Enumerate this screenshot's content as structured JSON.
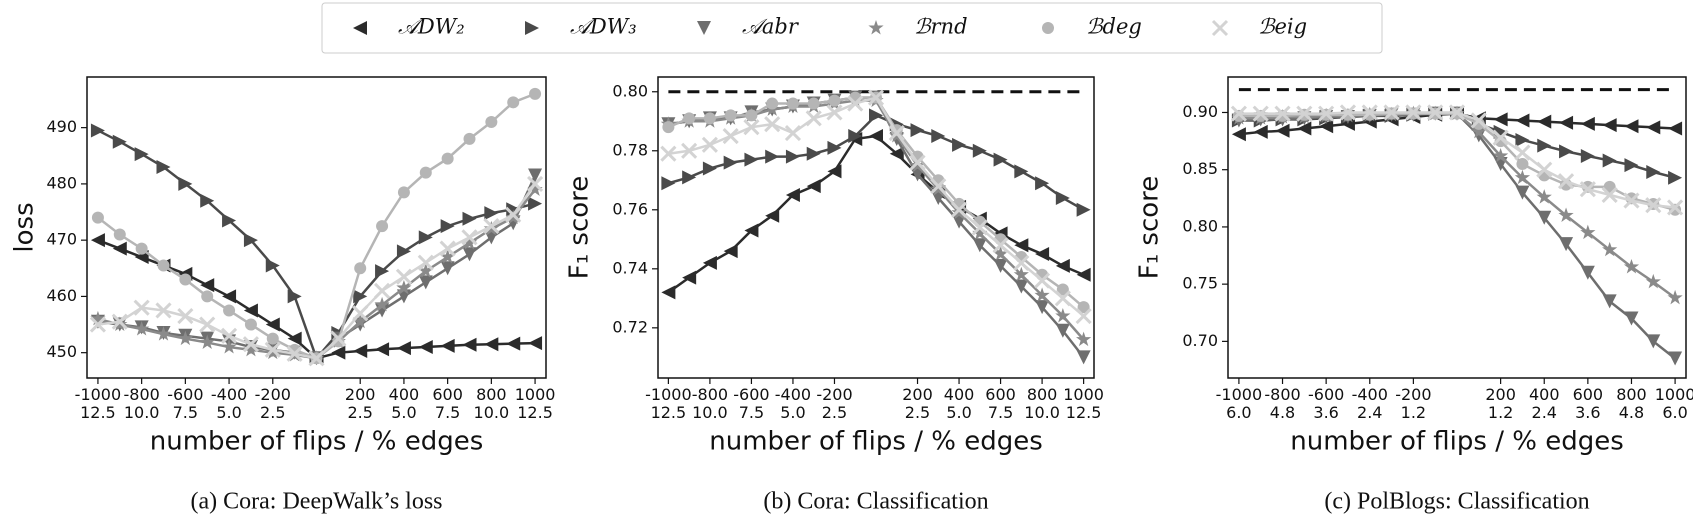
{
  "chart_data": [
    {
      "type": "line",
      "caption": "(a) Cora: DeepWalk’s loss",
      "xlabel": "number of flips / % edges",
      "ylabel": "loss",
      "x": [
        -1000,
        -900,
        -800,
        -700,
        -600,
        -500,
        -400,
        -300,
        -200,
        -100,
        0,
        100,
        200,
        300,
        400,
        500,
        600,
        700,
        800,
        900,
        1000
      ],
      "xlim": [
        -1050,
        1050
      ],
      "ylim": [
        445.5,
        499
      ],
      "yticks": [
        450,
        460,
        470,
        480,
        490
      ],
      "xticks": [
        {
          "value": -1000,
          "label": "-1000\n12.5"
        },
        {
          "value": -800,
          "label": "-800\n10.0"
        },
        {
          "value": -600,
          "label": "-600\n7.5"
        },
        {
          "value": -400,
          "label": "-400\n5.0"
        },
        {
          "value": -200,
          "label": "-200\n2.5"
        },
        {
          "value": 200,
          "label": "200\n2.5"
        },
        {
          "value": 400,
          "label": "400\n5.0"
        },
        {
          "value": 600,
          "label": "600\n7.5"
        },
        {
          "value": 800,
          "label": "800\n10.0"
        },
        {
          "value": 1000,
          "label": "1000\n12.5"
        }
      ],
      "series": [
        {
          "name": "𝒜DW₂",
          "color": "#2b2b2b",
          "marker": "triangle-left",
          "values": [
            470,
            468.5,
            467,
            465.5,
            464,
            462,
            460,
            457.5,
            455,
            452.5,
            449,
            450,
            450.3,
            450.6,
            450.8,
            451,
            451.2,
            451.4,
            451.5,
            451.6,
            451.7
          ]
        },
        {
          "name": "𝒜DW₃",
          "color": "#4a4a4a",
          "marker": "triangle-right",
          "values": [
            489.5,
            487.5,
            485.3,
            483,
            480,
            477,
            473.5,
            470,
            465.5,
            460,
            449,
            453.5,
            460,
            464.5,
            468,
            470.5,
            472.5,
            473.8,
            474.8,
            475.5,
            476.5
          ]
        },
        {
          "name": "𝒜abr",
          "color": "#6e6e6e",
          "marker": "triangle-down",
          "values": [
            455.5,
            455,
            454.5,
            453.5,
            453,
            452.5,
            452,
            451,
            450.5,
            450,
            449,
            452.5,
            455,
            457.5,
            460,
            462.5,
            465,
            467.5,
            470.5,
            473,
            481.5
          ]
        },
        {
          "name": "ℬrnd",
          "color": "#8a8a8a",
          "marker": "star",
          "values": [
            456,
            455,
            454.2,
            453.3,
            452.5,
            451.8,
            451,
            450.5,
            450,
            449.6,
            449,
            452,
            455.5,
            458.5,
            461.5,
            464.5,
            467,
            469.5,
            472,
            474,
            479
          ]
        },
        {
          "name": "ℬdeg",
          "color": "#b5b5b5",
          "marker": "circle",
          "values": [
            474,
            471,
            468.5,
            465.5,
            463,
            460,
            457.5,
            455,
            452.5,
            450.5,
            449,
            452,
            465,
            472.5,
            478.5,
            482,
            484.5,
            488,
            491,
            494.5,
            496
          ]
        },
        {
          "name": "ℬeig",
          "color": "#d3d3d3",
          "marker": "x",
          "values": [
            455,
            455.5,
            458,
            457.5,
            456.5,
            455,
            453,
            451.5,
            450.5,
            449.8,
            449,
            452.5,
            457,
            461,
            463.5,
            466,
            468.5,
            470.5,
            472.5,
            474.5,
            480
          ]
        }
      ]
    },
    {
      "type": "line",
      "caption": "(b) Cora: Classification",
      "xlabel": "number of flips / % edges",
      "ylabel": "F₁ score",
      "x": [
        -1000,
        -900,
        -800,
        -700,
        -600,
        -500,
        -400,
        -300,
        -200,
        -100,
        0,
        100,
        200,
        300,
        400,
        500,
        600,
        700,
        800,
        900,
        1000
      ],
      "xlim": [
        -1050,
        1050
      ],
      "ylim": [
        0.703,
        0.805
      ],
      "hline": 0.8,
      "yticks": [
        0.72,
        0.74,
        0.76,
        0.78,
        {
          "value": 0.8,
          "label": "0.80"
        }
      ],
      "xticks": [
        {
          "value": -1000,
          "label": "-1000\n12.5"
        },
        {
          "value": -800,
          "label": "-800\n10.0"
        },
        {
          "value": -600,
          "label": "-600\n7.5"
        },
        {
          "value": -400,
          "label": "-400\n5.0"
        },
        {
          "value": -200,
          "label": "-200\n2.5"
        },
        {
          "value": 200,
          "label": "200\n2.5"
        },
        {
          "value": 400,
          "label": "400\n5.0"
        },
        {
          "value": 600,
          "label": "600\n7.5"
        },
        {
          "value": 800,
          "label": "800\n10.0"
        },
        {
          "value": 1000,
          "label": "1000\n12.5"
        }
      ],
      "series": [
        {
          "name": "𝒜DW₂",
          "color": "#2b2b2b",
          "marker": "triangle-left",
          "values": [
            0.732,
            0.737,
            0.742,
            0.746,
            0.753,
            0.758,
            0.765,
            0.768,
            0.773,
            0.784,
            0.785,
            0.779,
            0.772,
            0.766,
            0.761,
            0.757,
            0.752,
            0.748,
            0.745,
            0.741,
            0.738
          ]
        },
        {
          "name": "𝒜DW₃",
          "color": "#4a4a4a",
          "marker": "triangle-right",
          "values": [
            0.769,
            0.771,
            0.774,
            0.776,
            0.777,
            0.778,
            0.778,
            0.779,
            0.781,
            0.785,
            0.792,
            0.789,
            0.787,
            0.785,
            0.782,
            0.78,
            0.777,
            0.773,
            0.769,
            0.764,
            0.76
          ]
        },
        {
          "name": "𝒜abr",
          "color": "#6e6e6e",
          "marker": "triangle-down",
          "values": [
            0.789,
            0.79,
            0.791,
            0.791,
            0.793,
            0.794,
            0.795,
            0.796,
            0.797,
            0.798,
            0.798,
            0.784,
            0.772,
            0.764,
            0.756,
            0.748,
            0.741,
            0.734,
            0.727,
            0.719,
            0.71
          ]
        },
        {
          "name": "ℬrnd",
          "color": "#8a8a8a",
          "marker": "star",
          "values": [
            0.789,
            0.79,
            0.79,
            0.791,
            0.792,
            0.794,
            0.795,
            0.795,
            0.796,
            0.797,
            0.797,
            0.785,
            0.775,
            0.767,
            0.759,
            0.752,
            0.745,
            0.738,
            0.731,
            0.724,
            0.716
          ]
        },
        {
          "name": "ℬdeg",
          "color": "#b5b5b5",
          "marker": "circle",
          "values": [
            0.788,
            0.791,
            0.791,
            0.792,
            0.792,
            0.796,
            0.796,
            0.796,
            0.797,
            0.798,
            0.798,
            0.787,
            0.778,
            0.77,
            0.762,
            0.756,
            0.75,
            0.744,
            0.738,
            0.733,
            0.727
          ]
        },
        {
          "name": "ℬeig",
          "color": "#d3d3d3",
          "marker": "x",
          "values": [
            0.779,
            0.78,
            0.782,
            0.785,
            0.788,
            0.789,
            0.786,
            0.791,
            0.793,
            0.796,
            0.798,
            0.786,
            0.776,
            0.768,
            0.76,
            0.754,
            0.748,
            0.742,
            0.736,
            0.73,
            0.724
          ]
        }
      ]
    },
    {
      "type": "line",
      "caption": "(c) PolBlogs: Classification",
      "xlabel": "number of flips / % edges",
      "ylabel": "F₁ score",
      "x": [
        -1000,
        -900,
        -800,
        -700,
        -600,
        -500,
        -400,
        -300,
        -200,
        -100,
        0,
        100,
        200,
        300,
        400,
        500,
        600,
        700,
        800,
        900,
        1000
      ],
      "xlim": [
        -1050,
        1050
      ],
      "ylim": [
        0.668,
        0.931
      ],
      "hline": 0.92,
      "yticks": [
        {
          "value": 0.7,
          "label": "0.70"
        },
        0.75,
        {
          "value": 0.8,
          "label": "0.80"
        },
        0.85,
        {
          "value": 0.9,
          "label": "0.90"
        }
      ],
      "xticks": [
        {
          "value": -1000,
          "label": "-1000\n6.0"
        },
        {
          "value": -800,
          "label": "-800\n4.8"
        },
        {
          "value": -600,
          "label": "-600\n3.6"
        },
        {
          "value": -400,
          "label": "-400\n2.4"
        },
        {
          "value": -200,
          "label": "-200\n1.2"
        },
        {
          "value": 200,
          "label": "200\n1.2"
        },
        {
          "value": 400,
          "label": "400\n2.4"
        },
        {
          "value": 600,
          "label": "600\n3.6"
        },
        {
          "value": 800,
          "label": "800\n4.8"
        },
        {
          "value": 1000,
          "label": "1000\n6.0"
        }
      ],
      "series": [
        {
          "name": "𝒜DW₂",
          "color": "#2b2b2b",
          "marker": "triangle-left",
          "values": [
            0.881,
            0.883,
            0.884,
            0.886,
            0.888,
            0.89,
            0.892,
            0.894,
            0.896,
            0.898,
            0.899,
            0.895,
            0.894,
            0.893,
            0.892,
            0.891,
            0.89,
            0.889,
            0.888,
            0.887,
            0.886
          ]
        },
        {
          "name": "𝒜DW₃",
          "color": "#4a4a4a",
          "marker": "triangle-right",
          "values": [
            0.893,
            0.893,
            0.894,
            0.894,
            0.895,
            0.896,
            0.897,
            0.897,
            0.898,
            0.899,
            0.9,
            0.89,
            0.883,
            0.876,
            0.871,
            0.866,
            0.862,
            0.858,
            0.854,
            0.848,
            0.843
          ]
        },
        {
          "name": "𝒜abr",
          "color": "#6e6e6e",
          "marker": "triangle-down",
          "values": [
            0.893,
            0.894,
            0.894,
            0.895,
            0.896,
            0.896,
            0.897,
            0.898,
            0.898,
            0.899,
            0.899,
            0.88,
            0.855,
            0.83,
            0.808,
            0.785,
            0.76,
            0.735,
            0.72,
            0.7,
            0.685
          ]
        },
        {
          "name": "ℬrnd",
          "color": "#8a8a8a",
          "marker": "star",
          "values": [
            0.895,
            0.895,
            0.896,
            0.896,
            0.897,
            0.897,
            0.898,
            0.898,
            0.899,
            0.899,
            0.899,
            0.883,
            0.862,
            0.843,
            0.826,
            0.81,
            0.795,
            0.78,
            0.765,
            0.752,
            0.738
          ]
        },
        {
          "name": "ℬdeg",
          "color": "#b5b5b5",
          "marker": "circle",
          "values": [
            0.897,
            0.897,
            0.897,
            0.898,
            0.898,
            0.898,
            0.898,
            0.899,
            0.899,
            0.899,
            0.899,
            0.89,
            0.875,
            0.855,
            0.845,
            0.837,
            0.835,
            0.835,
            0.825,
            0.82,
            0.815
          ]
        },
        {
          "name": "ℬeig",
          "color": "#d3d3d3",
          "marker": "x",
          "values": [
            0.899,
            0.899,
            0.899,
            0.899,
            0.899,
            0.9,
            0.9,
            0.9,
            0.9,
            0.9,
            0.9,
            0.893,
            0.878,
            0.865,
            0.85,
            0.84,
            0.833,
            0.828,
            0.823,
            0.819,
            0.817
          ]
        }
      ]
    }
  ]
}
